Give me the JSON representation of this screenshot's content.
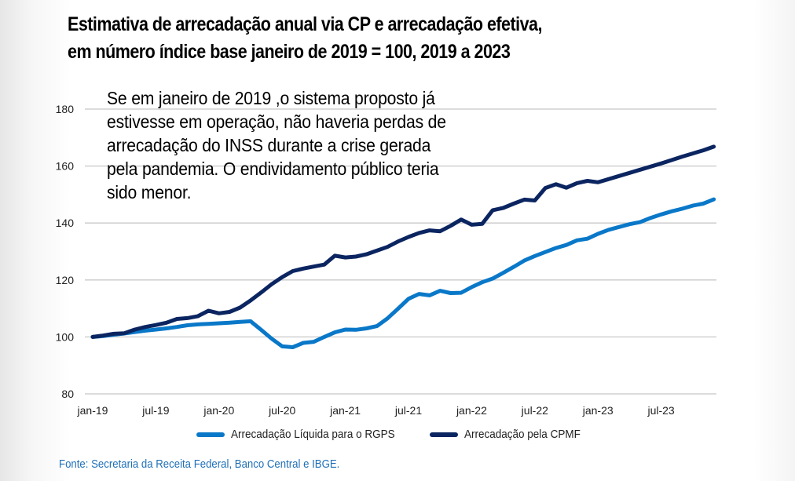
{
  "title_lines": [
    "Estimativa de arrecadação anual via CP e arrecadação efetiva,",
    "em número índice base janeiro de 2019 = 100, 2019 a 2023"
  ],
  "annotation_lines": [
    "Se em janeiro de 2019 ,o sistema proposto já",
    "estivesse em operação, não haveria perdas de",
    "arrecadação do INSS durante a crise gerada",
    "pela pandemia. O endividamento público teria",
    "sido menor."
  ],
  "source": "Fonte: Secretaria da Receita Federal, Banco Central e IBGE.",
  "colors": {
    "rgps": "#0a78c8",
    "cpmf": "#0b2561",
    "grid": "#c8c8c8",
    "axis_text": "#222222",
    "source_text": "#1f6fb8"
  },
  "chart_data": {
    "type": "line",
    "title": "Estimativa de arrecadação anual via CP e arrecadação efetiva, em número índice base janeiro de 2019 = 100, 2019 a 2023",
    "xlabel": "",
    "ylabel": "",
    "ylim": [
      80,
      180
    ],
    "yticks": [
      80,
      100,
      120,
      140,
      160,
      180
    ],
    "grid": true,
    "legend_position": "bottom",
    "x_tick_labels": [
      "jan-19",
      "jul-19",
      "jan-20",
      "jul-20",
      "jan-21",
      "jul-21",
      "jan-22",
      "jul-22",
      "jan-23",
      "jul-23"
    ],
    "x_tick_months": [
      0,
      6,
      12,
      18,
      24,
      30,
      36,
      42,
      48,
      54
    ],
    "n_months": 59,
    "series": [
      {
        "name": "Arrecadação Líquida para o RGPS",
        "color_key": "rgps",
        "values": [
          100.0,
          100.3,
          100.8,
          101.2,
          101.7,
          102.2,
          102.6,
          103.0,
          103.5,
          104.1,
          104.4,
          104.6,
          104.8,
          105.0,
          105.3,
          105.5,
          102.5,
          99.4,
          96.7,
          96.4,
          97.9,
          98.3,
          100.0,
          101.6,
          102.6,
          102.5,
          103.0,
          103.8,
          106.5,
          109.9,
          113.4,
          115.1,
          114.6,
          116.2,
          115.4,
          115.5,
          117.5,
          119.2,
          120.5,
          122.5,
          124.6,
          126.8,
          128.4,
          129.8,
          131.2,
          132.3,
          133.9,
          134.5,
          136.2,
          137.6,
          138.6,
          139.6,
          140.3,
          141.8,
          143.0,
          144.1,
          145.0,
          146.1,
          146.8,
          148.3
        ]
      },
      {
        "name": "Arrecadação pela CPMF",
        "color_key": "cpmf",
        "values": [
          100.0,
          100.5,
          101.1,
          101.3,
          102.6,
          103.5,
          104.2,
          105.0,
          106.3,
          106.6,
          107.3,
          109.2,
          108.3,
          108.8,
          110.3,
          112.8,
          115.6,
          118.5,
          121.0,
          123.1,
          124.0,
          124.7,
          125.4,
          128.5,
          127.9,
          128.2,
          129.0,
          130.3,
          131.6,
          133.5,
          135.1,
          136.5,
          137.4,
          137.1,
          139.0,
          141.2,
          139.4,
          139.7,
          144.5,
          145.3,
          146.8,
          148.2,
          147.9,
          152.3,
          153.6,
          152.4,
          154.0,
          154.8,
          154.3,
          155.4,
          156.5,
          157.6,
          158.7,
          159.8,
          160.9,
          162.1,
          163.3,
          164.4,
          165.5,
          166.8
        ]
      }
    ]
  }
}
